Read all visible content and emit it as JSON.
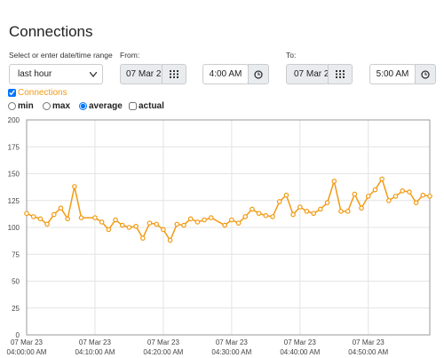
{
  "title": "Connections",
  "range_label": "Select or enter date/time range",
  "range_select": "last hour",
  "from": {
    "label": "From:",
    "date": "07 Mar 2",
    "time": "4:00 AM"
  },
  "to": {
    "label": "To:",
    "date": "07 Mar 2",
    "time": "5:00 AM"
  },
  "series_toggle": "Connections",
  "modes": [
    "min",
    "max",
    "average"
  ],
  "actual": "actual",
  "chart_data": {
    "type": "line",
    "grid": true,
    "x": [
      0,
      1,
      2,
      3,
      4,
      5,
      6,
      7,
      8,
      10,
      11,
      12,
      13,
      14,
      15,
      16,
      17,
      18,
      19,
      20,
      21,
      22,
      23,
      24,
      25,
      26,
      27,
      29,
      30,
      31,
      32,
      33,
      34,
      35,
      36,
      37,
      38,
      39,
      40,
      41,
      42,
      43,
      44,
      45,
      46,
      47,
      48,
      49,
      50,
      51,
      52,
      53,
      54,
      55,
      56,
      57,
      58,
      59
    ],
    "series": [
      {
        "name": "Connections",
        "color": "#f29a13",
        "values": [
          113,
          110,
          108,
          103,
          112,
          118,
          108,
          138,
          109,
          109,
          105,
          98,
          107,
          102,
          100,
          101,
          90,
          104,
          103,
          98,
          88,
          103,
          102,
          108,
          105,
          107,
          109,
          102,
          107,
          104,
          110,
          117,
          113,
          111,
          110,
          124,
          130,
          112,
          119,
          115,
          113,
          117,
          123,
          143,
          115,
          115,
          131,
          118,
          129,
          135,
          145,
          125,
          129,
          134,
          133,
          123,
          130,
          129
        ]
      }
    ],
    "xlim": [
      0,
      59
    ],
    "xticks": [
      {
        "value": 0,
        "label": [
          "07 Mar 23",
          "04:00:00 AM"
        ]
      },
      {
        "value": 10,
        "label": [
          "07 Mar 23",
          "04:10:00 AM"
        ]
      },
      {
        "value": 20,
        "label": [
          "07 Mar 23",
          "04:20:00 AM"
        ]
      },
      {
        "value": 30,
        "label": [
          "07 Mar 23",
          "04:30:00 AM"
        ]
      },
      {
        "value": 40,
        "label": [
          "07 Mar 23",
          "04:40:00 AM"
        ]
      },
      {
        "value": 50,
        "label": [
          "07 Mar 23",
          "04:50:00 AM"
        ]
      }
    ],
    "ylim": [
      0,
      200
    ],
    "yticks": [
      0,
      25,
      50,
      75,
      100,
      125,
      150,
      175,
      200
    ]
  }
}
